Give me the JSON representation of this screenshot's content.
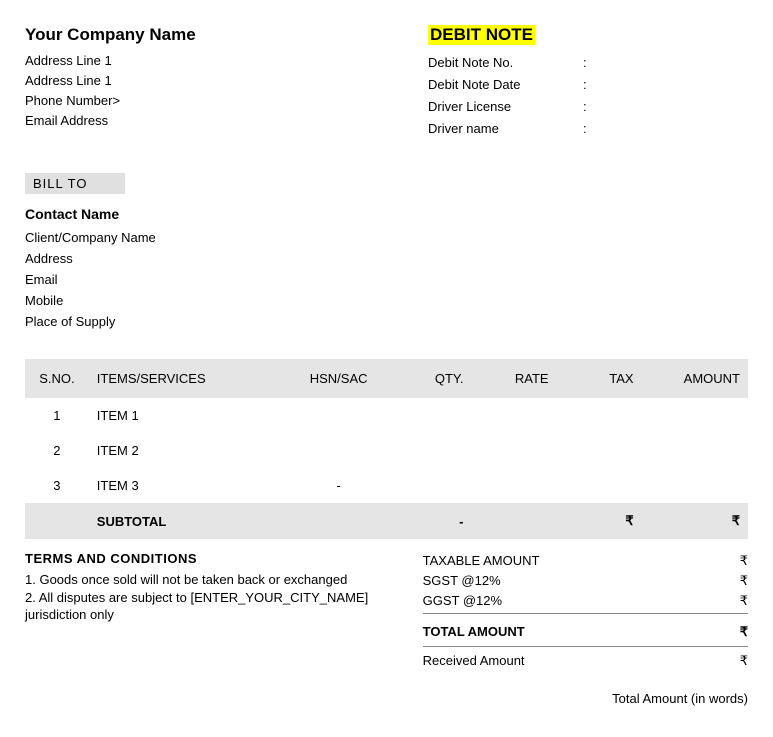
{
  "company": {
    "name": "Your Company Name",
    "address1": "Address Line 1",
    "address2": "Address Line 1",
    "phone": "Phone Number>",
    "email": "Email Address"
  },
  "note": {
    "title": "DEBIT NOTE",
    "fields": {
      "no_label": "Debit Note No.",
      "date_label": "Debit Note Date",
      "license_label": "Driver License",
      "driver_label": "Driver name"
    },
    "colon": ":"
  },
  "bill_to": {
    "section_label": "BILL TO",
    "contact": "Contact Name",
    "client": "Client/Company Name",
    "address": "Address",
    "email": "Email",
    "mobile": "Mobile",
    "place": "Place of Supply"
  },
  "table": {
    "headers": {
      "sno": "S.NO.",
      "items": "ITEMS/SERVICES",
      "hsn": "HSN/SAC",
      "qty": "QTY.",
      "rate": "RATE",
      "tax": "TAX",
      "amount": "AMOUNT"
    },
    "rows": [
      {
        "sno": "1",
        "item": "ITEM  1",
        "hsn": "",
        "qty": "",
        "rate": "",
        "tax": "",
        "amount": ""
      },
      {
        "sno": "2",
        "item": "ITEM 2",
        "hsn": "",
        "qty": "",
        "rate": "",
        "tax": "",
        "amount": ""
      },
      {
        "sno": "3",
        "item": "ITEM 3",
        "hsn": "-",
        "qty": "",
        "rate": "",
        "tax": "",
        "amount": ""
      }
    ],
    "subtotal": {
      "label": "SUBTOTAL",
      "qty": "-",
      "tax": "₹",
      "amount": "₹"
    }
  },
  "terms": {
    "title": "TERMS AND CONDITIONS",
    "line1": "1. Goods once sold will not be taken back or exchanged",
    "line2": "2. All disputes are subject to [ENTER_YOUR_CITY_NAME] jurisdiction only"
  },
  "totals": {
    "taxable_label": "TAXABLE AMOUNT",
    "sgst_label": "SGST @12%",
    "ggst_label": "GGST @12%",
    "total_label": "TOTAL AMOUNT",
    "received_label": "Received Amount",
    "rupee": "₹",
    "words_label": "Total Amount (in words)"
  }
}
